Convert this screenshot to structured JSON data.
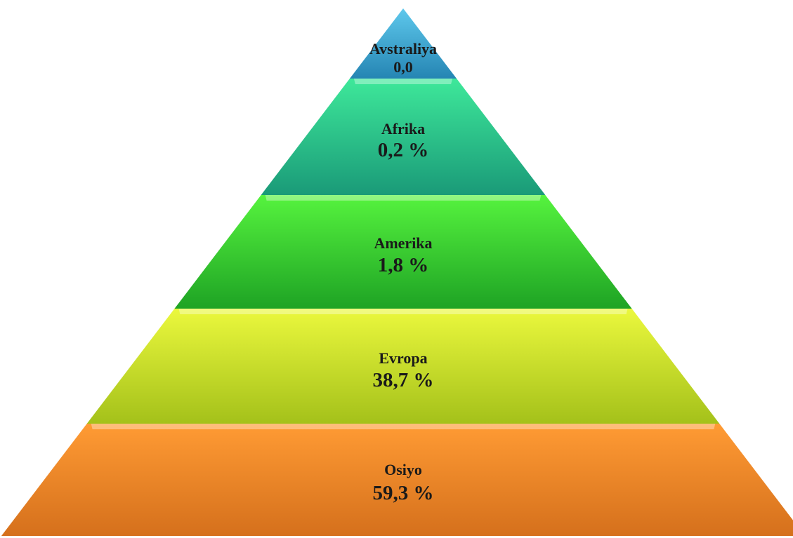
{
  "diagram": {
    "type": "pyramid",
    "tiers": [
      {
        "name": "Avstraliya",
        "value": "0,0",
        "color_light": "#5ec8ec",
        "color_dark": "#2585b3"
      },
      {
        "name": "Afrika",
        "value": "0,2 %",
        "color_light": "#3ee89a",
        "color_dark": "#1a9a78"
      },
      {
        "name": "Amerika",
        "value": "1,8 %",
        "color_light": "#56f33e",
        "color_dark": "#1ea324"
      },
      {
        "name": "Evropa",
        "value": "38,7 %",
        "color_light": "#ebf83d",
        "color_dark": "#a4c11a"
      },
      {
        "name": "Osiyo",
        "value": "59,3 %",
        "color_light": "#ff9b34",
        "color_dark": "#d5701c"
      }
    ]
  }
}
